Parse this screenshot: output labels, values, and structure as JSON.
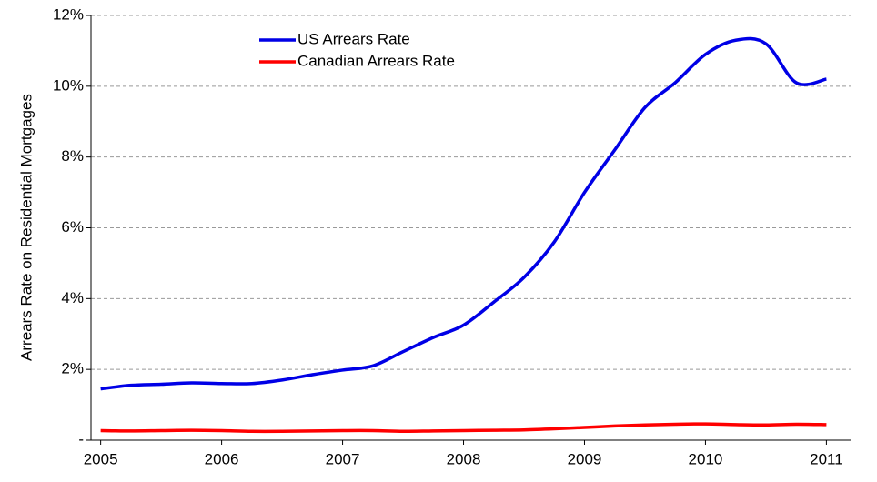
{
  "chart_data": {
    "type": "line",
    "y_label": "Arrears Rate on Residential Mortgages",
    "x": [
      2005.0,
      2005.25,
      2005.5,
      2005.75,
      2006.0,
      2006.25,
      2006.5,
      2006.75,
      2007.0,
      2007.25,
      2007.5,
      2007.75,
      2008.0,
      2008.25,
      2008.5,
      2008.75,
      2009.0,
      2009.25,
      2009.5,
      2009.75,
      2010.0,
      2010.25,
      2010.5,
      2010.75,
      2011.0
    ],
    "series": [
      {
        "name": "US Arrears Rate",
        "color": "#0000e6",
        "values": [
          1.45,
          1.55,
          1.58,
          1.62,
          1.6,
          1.6,
          1.7,
          1.85,
          1.98,
          2.1,
          2.5,
          2.9,
          3.25,
          3.9,
          4.6,
          5.6,
          7.0,
          8.2,
          9.4,
          10.1,
          10.9,
          11.3,
          11.2,
          10.1,
          10.2
        ]
      },
      {
        "name": "Canadian Arrears Rate",
        "color": "#ff0000",
        "values": [
          0.27,
          0.26,
          0.27,
          0.28,
          0.27,
          0.25,
          0.25,
          0.26,
          0.27,
          0.27,
          0.25,
          0.26,
          0.27,
          0.28,
          0.29,
          0.32,
          0.36,
          0.4,
          0.43,
          0.45,
          0.46,
          0.44,
          0.43,
          0.45,
          0.44
        ]
      }
    ],
    "xlim": [
      2004.92,
      2011.2
    ],
    "xticks": [
      2005,
      2006,
      2007,
      2008,
      2009,
      2010,
      2011
    ],
    "ylim": [
      0,
      12
    ],
    "yticks": [
      {
        "value": 0,
        "label": "-"
      },
      {
        "value": 2,
        "label": "2%"
      },
      {
        "value": 4,
        "label": "4%"
      },
      {
        "value": 6,
        "label": "6%"
      },
      {
        "value": 8,
        "label": "8%"
      },
      {
        "value": 10,
        "label": "10%"
      },
      {
        "value": 12,
        "label": "12%"
      }
    ],
    "grid": true
  }
}
